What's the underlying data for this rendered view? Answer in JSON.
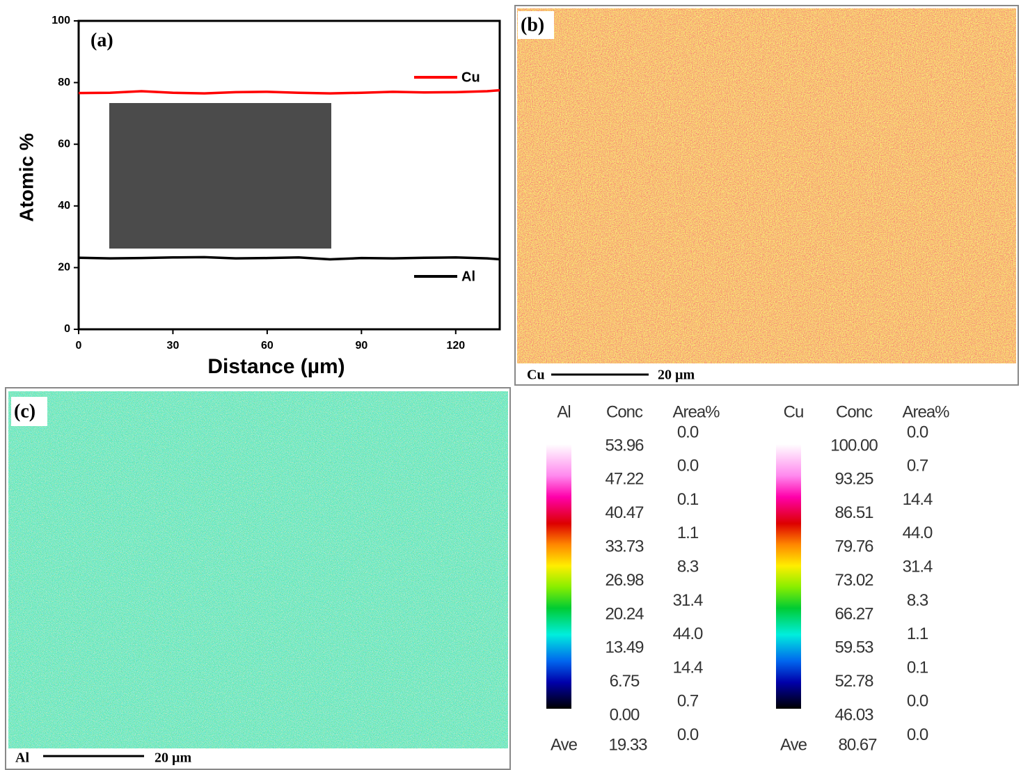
{
  "chart_data": {
    "type": "line",
    "panel_label": "(a)",
    "x_label": "Distance (µm)",
    "y_label": "Atomic %",
    "x": [
      0,
      10,
      20,
      30,
      40,
      50,
      60,
      70,
      80,
      90,
      100,
      110,
      120,
      130,
      134
    ],
    "series": [
      {
        "name": "Cu",
        "color": "#ff0000",
        "values": [
          76.6,
          76.7,
          77.2,
          76.7,
          76.5,
          76.9,
          77.0,
          76.7,
          76.5,
          76.7,
          77.0,
          76.8,
          76.9,
          77.2,
          77.5
        ]
      },
      {
        "name": "Al",
        "color": "#000000",
        "values": [
          23.2,
          23.0,
          23.1,
          23.3,
          23.4,
          23.0,
          23.1,
          23.3,
          22.7,
          23.1,
          23.0,
          23.2,
          23.3,
          23.0,
          22.7
        ]
      }
    ],
    "xlim": [
      0,
      134
    ],
    "xticks": [
      0,
      30,
      60,
      90,
      120
    ],
    "ylim": [
      0,
      100
    ],
    "yticks": [
      0,
      20,
      40,
      60,
      80,
      100
    ]
  },
  "panels": [
    {
      "label": "(b)",
      "element": "Cu",
      "scale": "20 µm"
    },
    {
      "label": "(c)",
      "element": "Al",
      "scale": "20 µm"
    }
  ],
  "legends": [
    {
      "element": "Al",
      "conc_header": "Conc",
      "area_header": "Area%",
      "conc": [
        "53.96",
        "47.22",
        "40.47",
        "33.73",
        "26.98",
        "20.24",
        "13.49",
        "6.75",
        "0.00"
      ],
      "area": [
        "0.0",
        "0.0",
        "0.1",
        "1.1",
        "8.3",
        "31.4",
        "44.0",
        "14.4",
        "0.7",
        "0.0"
      ],
      "ave_label": "Ave",
      "ave": "19.33"
    },
    {
      "element": "Cu",
      "conc_header": "Conc",
      "area_header": "Area%",
      "conc": [
        "100.00",
        "93.25",
        "86.51",
        "79.76",
        "73.02",
        "66.27",
        "59.53",
        "52.78",
        "46.03"
      ],
      "area": [
        "0.0",
        "0.7",
        "14.4",
        "44.0",
        "31.4",
        "8.3",
        "1.1",
        "0.1",
        "0.0",
        "0.0"
      ],
      "ave_label": "Ave",
      "ave": "80.67"
    }
  ]
}
